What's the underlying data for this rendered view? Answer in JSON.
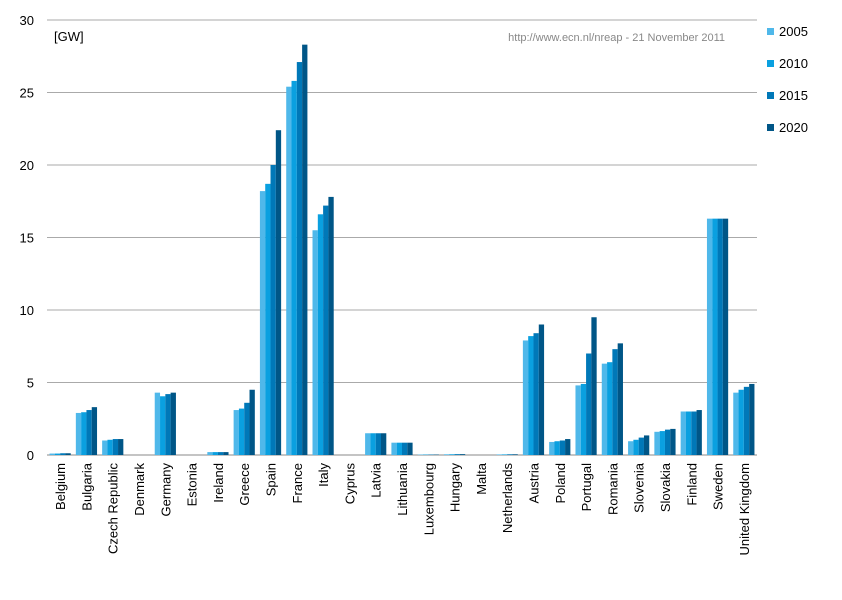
{
  "chart_data": {
    "type": "bar",
    "title": "",
    "unit_label": "[GW]",
    "source_note": "http://www.ecn.nl/nreap - 21 November 2011",
    "xlabel": "",
    "ylabel": "[GW]",
    "ylim": [
      0,
      30
    ],
    "yticks": [
      0,
      5,
      10,
      15,
      20,
      25,
      30
    ],
    "grid": true,
    "legend_position": "right",
    "categories": [
      "Belgium",
      "Bulgaria",
      "Czech Republic",
      "Denmark",
      "Germany",
      "Estonia",
      "Ireland",
      "Greece",
      "Spain",
      "France",
      "Italy",
      "Cyprus",
      "Latvia",
      "Lithuania",
      "Luxembourg",
      "Hungary",
      "Malta",
      "Netherlands",
      "Austria",
      "Poland",
      "Portugal",
      "Romania",
      "Slovenia",
      "Slovakia",
      "Finland",
      "Sweden",
      "United Kingdom"
    ],
    "series": [
      {
        "name": "2005",
        "color": "#4fb8ea",
        "values": [
          0.1,
          2.9,
          1.0,
          0,
          4.3,
          0,
          0.2,
          3.1,
          18.2,
          25.4,
          15.5,
          0,
          1.5,
          0.85,
          0.03,
          0.05,
          0,
          0.04,
          7.9,
          0.9,
          4.8,
          6.3,
          0.95,
          1.6,
          3.0,
          16.3,
          4.3
        ]
      },
      {
        "name": "2010",
        "color": "#0aa0e0",
        "values": [
          0.1,
          2.95,
          1.05,
          0,
          4.05,
          0,
          0.2,
          3.2,
          18.7,
          25.8,
          16.6,
          0,
          1.5,
          0.85,
          0.03,
          0.05,
          0,
          0.04,
          8.2,
          0.95,
          4.9,
          6.4,
          1.05,
          1.65,
          3.0,
          16.3,
          4.5
        ]
      },
      {
        "name": "2015",
        "color": "#0078b8",
        "values": [
          0.12,
          3.1,
          1.1,
          0,
          4.2,
          0,
          0.2,
          3.6,
          20.0,
          27.1,
          17.2,
          0,
          1.5,
          0.85,
          0.03,
          0.06,
          0,
          0.05,
          8.4,
          1.0,
          7.0,
          7.3,
          1.2,
          1.75,
          3.0,
          16.3,
          4.7
        ]
      },
      {
        "name": "2020",
        "color": "#005687",
        "values": [
          0.12,
          3.3,
          1.1,
          0,
          4.3,
          0,
          0.2,
          4.5,
          22.4,
          28.3,
          17.8,
          0,
          1.5,
          0.85,
          0.03,
          0.06,
          0,
          0.05,
          9.0,
          1.1,
          9.5,
          7.7,
          1.35,
          1.8,
          3.1,
          16.3,
          4.9
        ]
      }
    ]
  }
}
